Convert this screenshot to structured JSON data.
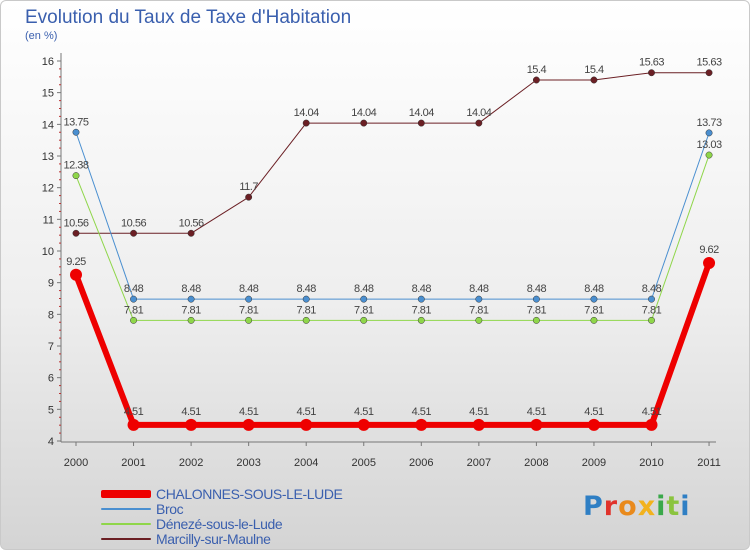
{
  "title": "Evolution du Taux de Taxe d'Habitation",
  "subtitle": "(en %)",
  "logo": "Proxiti",
  "logo_colors": [
    "#2f7fc4",
    "#e0322b",
    "#e98a1c",
    "#f2b21d",
    "#3aa84a",
    "#8bc43f",
    "#2f7fc4"
  ],
  "chart_data": {
    "type": "line",
    "x": [
      "2000",
      "2001",
      "2002",
      "2003",
      "2004",
      "2005",
      "2006",
      "2007",
      "2008",
      "2009",
      "2010",
      "2011"
    ],
    "ylim": [
      4,
      16
    ],
    "yticks": [
      4,
      5,
      6,
      7,
      8,
      9,
      10,
      11,
      12,
      13,
      14,
      15,
      16
    ],
    "grid": false,
    "legend_position": "bottom",
    "series": [
      {
        "name": "Marcilly-sur-Maulne",
        "color": "#6b1f24",
        "width": 1,
        "values": [
          10.56,
          10.56,
          10.56,
          11.7,
          14.04,
          14.04,
          14.04,
          14.04,
          15.4,
          15.4,
          15.63,
          15.63
        ],
        "labels": [
          "10.56",
          "10.56",
          "10.56",
          "11.7",
          "14.04",
          "14.04",
          "14.04",
          "14.04",
          "15.4",
          "15.4",
          "15.63",
          "15.63"
        ]
      },
      {
        "name": "Broc",
        "color": "#4a8fd0",
        "width": 1,
        "values": [
          13.75,
          8.48,
          8.48,
          8.48,
          8.48,
          8.48,
          8.48,
          8.48,
          8.48,
          8.48,
          8.48,
          13.73
        ],
        "labels": [
          "13.75",
          "8.48",
          "8.48",
          "8.48",
          "8.48",
          "8.48",
          "8.48",
          "8.48",
          "8.48",
          "8.48",
          "8.48",
          "13.73"
        ]
      },
      {
        "name": "Dénezé-sous-le-Lude",
        "color": "#8fd64a",
        "width": 1,
        "values": [
          12.38,
          7.81,
          7.81,
          7.81,
          7.81,
          7.81,
          7.81,
          7.81,
          7.81,
          7.81,
          7.81,
          13.03
        ],
        "labels": [
          "12.38",
          "7.81",
          "7.81",
          "7.81",
          "7.81",
          "7.81",
          "7.81",
          "7.81",
          "7.81",
          "7.81",
          "7.81",
          "13.03"
        ]
      },
      {
        "name": "CHALONNES-SOUS-LE-LUDE",
        "color": "#ee0000",
        "width": 6,
        "values": [
          9.25,
          4.51,
          4.51,
          4.51,
          4.51,
          4.51,
          4.51,
          4.51,
          4.51,
          4.51,
          4.51,
          9.62
        ],
        "labels": [
          "9.25",
          "4.51",
          "4.51",
          "4.51",
          "4.51",
          "4.51",
          "4.51",
          "4.51",
          "4.51",
          "4.51",
          "4.51",
          "9.62"
        ]
      }
    ]
  },
  "legend_order": [
    "CHALONNES-SOUS-LE-LUDE",
    "Broc",
    "Dénezé-sous-le-Lude",
    "Marcilly-sur-Maulne"
  ]
}
